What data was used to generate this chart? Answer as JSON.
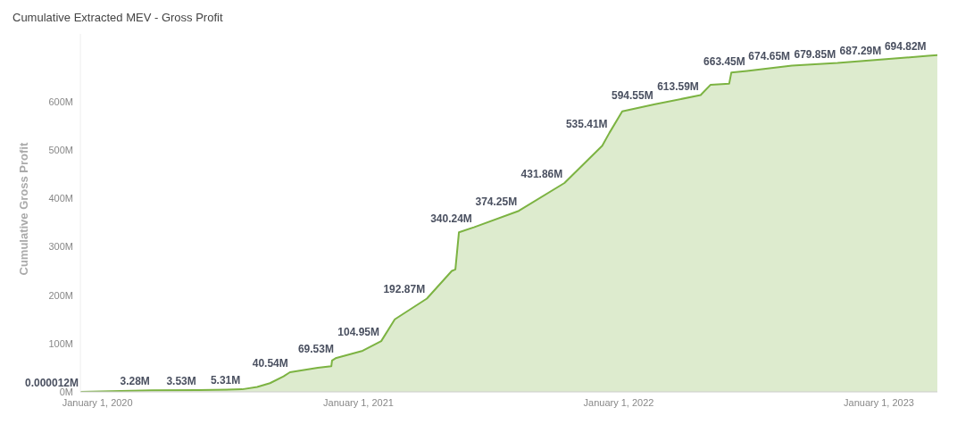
{
  "chart_data": {
    "type": "area",
    "title": "Cumulative Extracted MEV - Gross Profit",
    "ylabel": "Cumulative Gross Profit",
    "x": [
      "2019-12-08",
      "2020-03-17",
      "2020-05-21",
      "2020-07-22",
      "2020-08-12",
      "2020-08-30",
      "2020-09-18",
      "2020-09-27",
      "2020-11-05",
      "2020-11-24",
      "2020-11-25",
      "2020-11-30",
      "2021-01-07",
      "2021-02-02",
      "2021-02-21",
      "2021-04-07",
      "2021-05-12",
      "2021-05-17",
      "2021-05-22",
      "2021-06-12",
      "2021-08-14",
      "2021-10-17",
      "2021-12-09",
      "2021-12-19",
      "2022-01-06",
      "2022-02-21",
      "2022-04-26",
      "2022-05-10",
      "2022-06-05",
      "2022-06-08",
      "2022-06-30",
      "2022-09-01",
      "2022-11-04",
      "2023-01-07",
      "2023-03-11",
      "2023-03-24"
    ],
    "series": [
      {
        "color": "#7cb342",
        "values": [
          1.2e-05,
          3.28,
          3.53,
          5.31,
          10,
          18,
          32,
          40.54,
          50,
          53,
          65,
          69.53,
          85,
          104.95,
          150,
          192.87,
          250,
          253,
          330,
          340.24,
          374.25,
          431.86,
          509,
          535.41,
          580,
          594.55,
          613.59,
          635,
          637,
          660,
          663.45,
          674.65,
          679.85,
          687.29,
          694.82,
          696
        ],
        "value_labels": [
          "0.000012M",
          "3.28M",
          "3.53M",
          "5.31M",
          null,
          null,
          null,
          "40.54M",
          null,
          null,
          null,
          "69.53M",
          null,
          "104.95M",
          null,
          "192.87M",
          null,
          null,
          null,
          "340.24M",
          "374.25M",
          "431.86M",
          null,
          "535.41M",
          null,
          "594.55M",
          "613.59M",
          null,
          null,
          null,
          "663.45M",
          "674.65M",
          "679.85M",
          "687.29M",
          "694.82M",
          null
        ]
      }
    ],
    "xlim": [
      "2019-12-08",
      "2023-03-24"
    ],
    "xticks": [
      {
        "value": "2020-01-01",
        "label": "January 1, 2020"
      },
      {
        "value": "2021-01-01",
        "label": "January 1, 2021"
      },
      {
        "value": "2022-01-01",
        "label": "January 1, 2022"
      },
      {
        "value": "2023-01-01",
        "label": "January 1, 2023"
      }
    ],
    "ylim": [
      0,
      740
    ],
    "yticks": [
      {
        "value": 0,
        "label": "0M"
      },
      {
        "value": 100,
        "label": "100M"
      },
      {
        "value": 200,
        "label": "200M"
      },
      {
        "value": 300,
        "label": "300M"
      },
      {
        "value": 400,
        "label": "400M"
      },
      {
        "value": 500,
        "label": "500M"
      },
      {
        "value": 600,
        "label": "600M"
      }
    ],
    "grid": false,
    "legend": false
  }
}
